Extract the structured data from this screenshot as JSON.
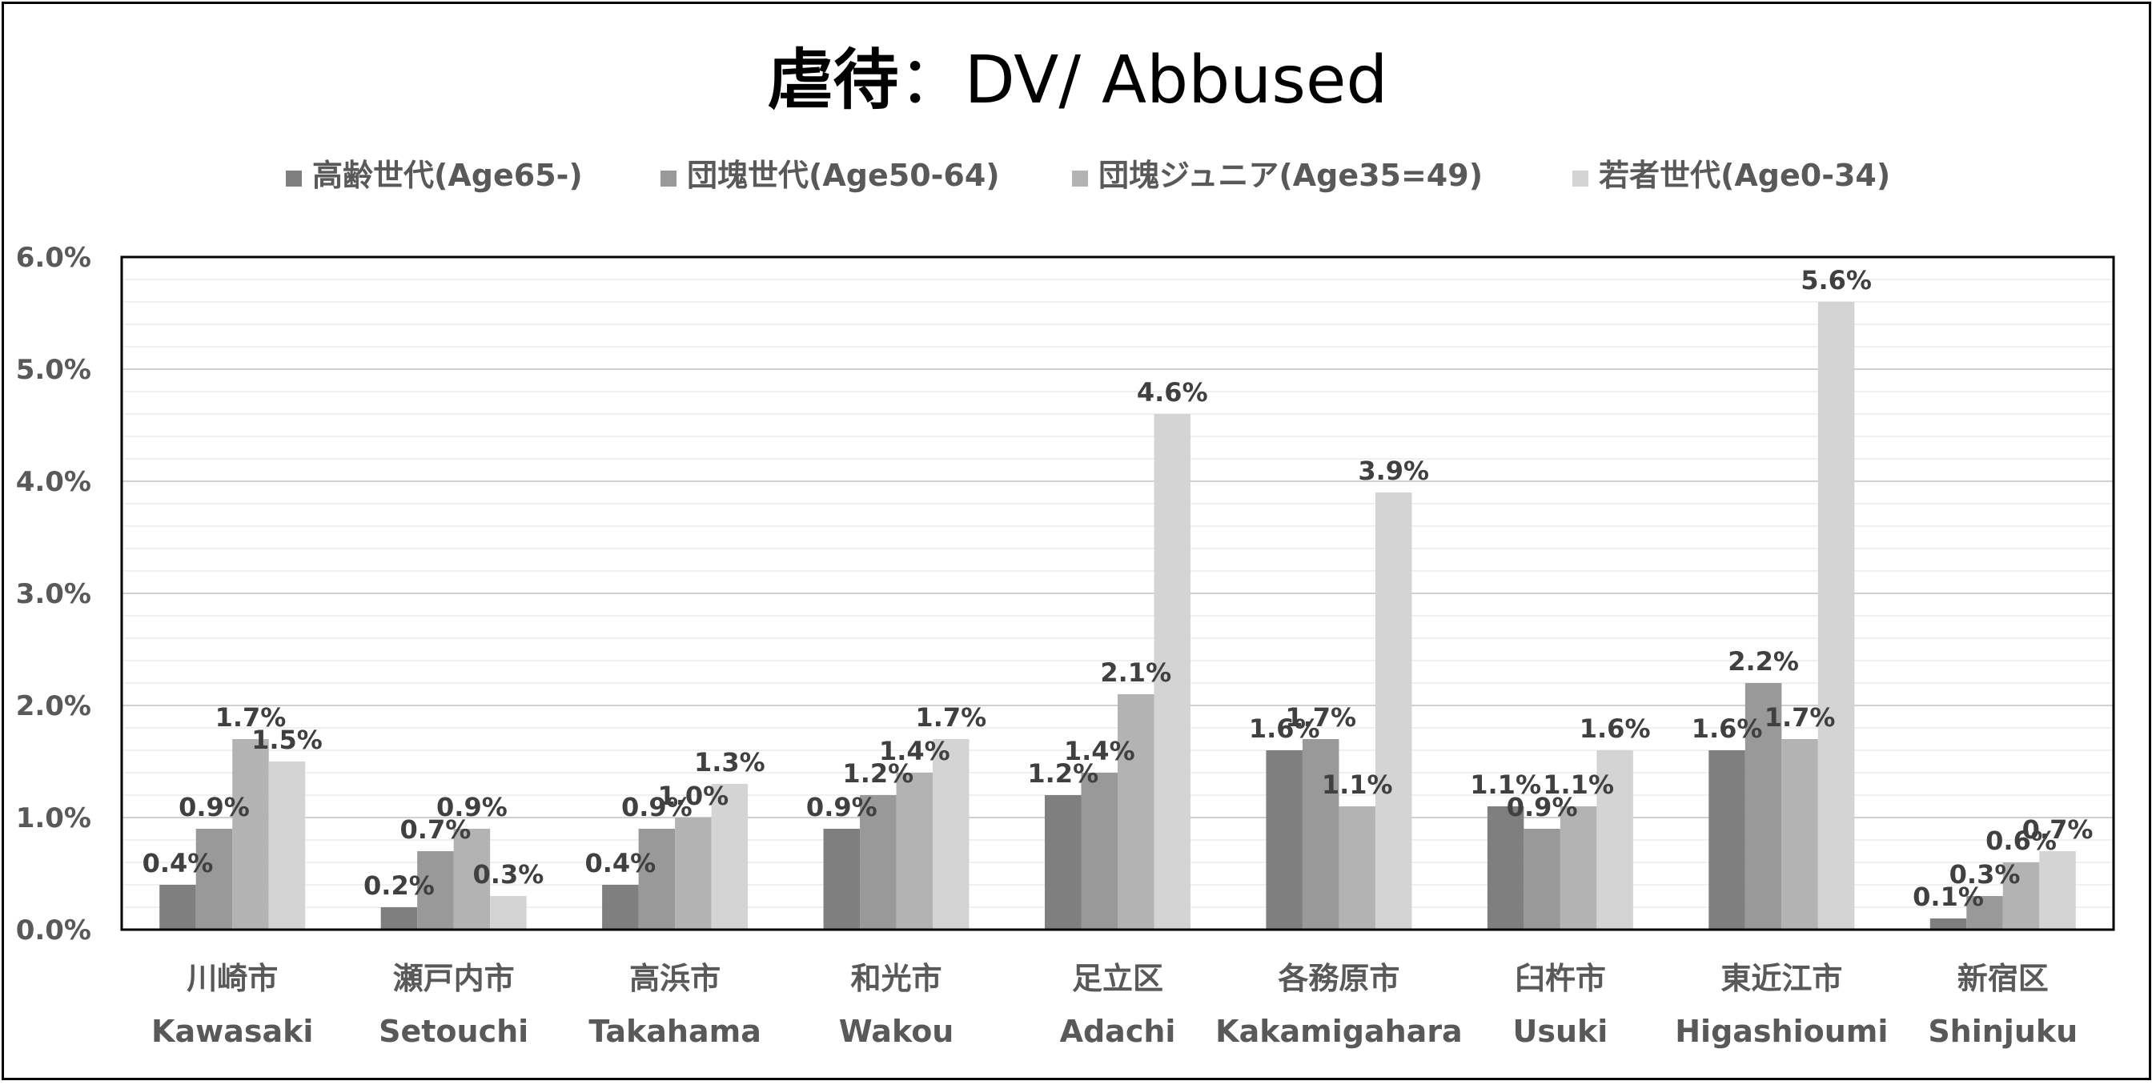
{
  "chart_data": {
    "type": "bar",
    "title": "虐待：DV/ Abbused",
    "title_parts": {
      "kanji": "虐待",
      "rest": "：DV/ Abbused"
    },
    "colors": [
      "#7f7f7f",
      "#999999",
      "#b3b3b3",
      "#d4d4d4"
    ],
    "legend_position": "top",
    "grid": true,
    "ylim": [
      0,
      6
    ],
    "yticks": [
      "0.0%",
      "1.0%",
      "2.0%",
      "3.0%",
      "4.0%",
      "5.0%",
      "6.0%"
    ],
    "categories": [
      {
        "ja": "川崎市",
        "en": "Kawasaki"
      },
      {
        "ja": "瀬戸内市",
        "en": "Setouchi"
      },
      {
        "ja": "高浜市",
        "en": "Takahama"
      },
      {
        "ja": "和光市",
        "en": "Wakou"
      },
      {
        "ja": "足立区",
        "en": "Adachi"
      },
      {
        "ja": "各務原市",
        "en": "Kakamigahara"
      },
      {
        "ja": "臼杵市",
        "en": "Usuki"
      },
      {
        "ja": "東近江市",
        "en": "Higashioumi"
      },
      {
        "ja": "新宿区",
        "en": "Shinjuku"
      }
    ],
    "series": [
      {
        "name": "高齢世代(Age65-)",
        "values": [
          0.4,
          0.2,
          0.4,
          0.9,
          1.2,
          1.6,
          1.1,
          1.6,
          0.1
        ],
        "labels": [
          "0.4%",
          "0.2%",
          "0.4%",
          "0.9%",
          "1.2%",
          "1.6%",
          "1.1%",
          "1.6%",
          "0.1%"
        ]
      },
      {
        "name": "団塊世代(Age50-64)",
        "values": [
          0.9,
          0.7,
          0.9,
          1.2,
          1.4,
          1.7,
          0.9,
          2.2,
          0.3
        ],
        "labels": [
          "0.9%",
          "0.7%",
          "0.9%",
          "1.2%",
          "1.4%",
          "1.7%",
          "0.9%",
          "2.2%",
          "0.3%"
        ]
      },
      {
        "name": "団塊ジュニア(Age35=49)",
        "values": [
          1.7,
          0.9,
          1.0,
          1.4,
          2.1,
          1.1,
          1.1,
          1.7,
          0.6
        ],
        "labels": [
          "1.7%",
          "0.9%",
          "1.0%",
          "1.4%",
          "2.1%",
          "1.1%",
          "1.1%",
          "1.7%",
          "0.6%"
        ]
      },
      {
        "name": "若者世代(Age0-34)",
        "values": [
          1.5,
          0.3,
          1.3,
          1.7,
          4.6,
          3.9,
          1.6,
          5.6,
          0.7
        ],
        "labels": [
          "1.5%",
          "0.3%",
          "1.3%",
          "1.7%",
          "4.6%",
          "3.9%",
          "1.6%",
          "5.6%",
          "0.7%"
        ]
      }
    ]
  }
}
